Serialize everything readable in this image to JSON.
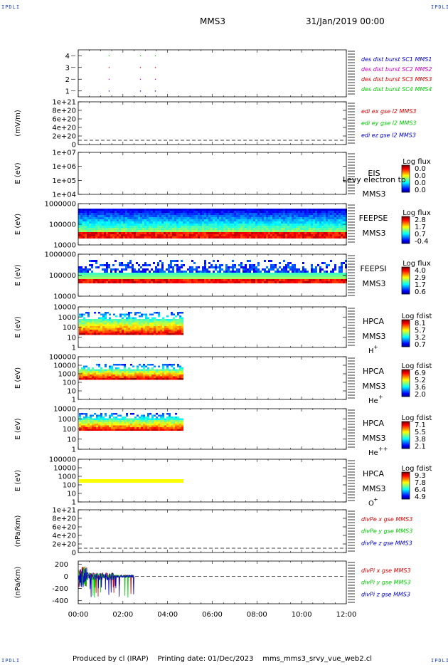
{
  "corners": {
    "tl": "IPDLI",
    "tr": "IPDLI",
    "bl": "IPDLI",
    "br": "IPDLI"
  },
  "header": {
    "spacecraft": "MMS3",
    "datetime": "31/Jan/2019 00:00"
  },
  "footer": {
    "producer": "Produced by cl (IRAP)",
    "printing_date": "Printing date: 01/Dec/2023",
    "file": "mms_mms3_srvy_vue_web2.cl"
  },
  "colors": {
    "sc1": "#0000cc",
    "sc2": "#cc00cc",
    "sc3": "#dd0000",
    "sc4": "#00cc00",
    "axis": "#000000"
  },
  "chart_data": [
    {
      "id": "burst",
      "type": "scatter",
      "ylabel": "",
      "yticks": [
        "4",
        "3",
        "2",
        "1"
      ],
      "ylim": [
        0.5,
        4.5
      ],
      "series": [
        {
          "name": "des dist burst SC1 MMS1",
          "color": "#0000cc",
          "y": 1,
          "x": [
            1.38,
            2.78,
            3.45
          ]
        },
        {
          "name": "des dist burst SC2 MMS2",
          "color": "#cc00cc",
          "y": 2,
          "x": [
            1.38,
            2.78,
            3.45
          ]
        },
        {
          "name": "des dist burst SC3 MMS3",
          "color": "#dd0000",
          "y": 3,
          "x": [
            1.38,
            2.78,
            3.45
          ]
        },
        {
          "name": "des dist burst SC4 MMS4",
          "color": "#00cc00",
          "y": 4,
          "x": [
            1.38,
            2.78,
            3.45
          ]
        }
      ]
    },
    {
      "id": "edi",
      "type": "line",
      "ylabel": "(mV/m)",
      "yticks": [
        "1e+21",
        "8e+20",
        "6e+20",
        "4e+20",
        "2e+20",
        "0"
      ],
      "series": [
        {
          "name": "edi ex gse l2 MMS3",
          "color": "#dd0000"
        },
        {
          "name": "edi ey gse l2 MMS3",
          "color": "#00cc00"
        },
        {
          "name": "edi ez gse l2 MMS3",
          "color": "#0000cc"
        }
      ]
    },
    {
      "id": "eis",
      "type": "heatmap",
      "ylabel": "E (eV)",
      "yticks": [
        "1e+07",
        "1e+06",
        "1e+05",
        "1e+04"
      ],
      "instrument": "EIS",
      "spacecraft": "MMS3",
      "overlay": "Levy electron to",
      "cbar_title": "Log flux",
      "cbar_ticks": [
        "0.0",
        "0.0",
        "0.0",
        "0.0"
      ]
    },
    {
      "id": "feepse",
      "type": "heatmap",
      "ylabel": "E (eV)",
      "yticks": [
        "1000000",
        "100000",
        "10000"
      ],
      "instrument": "FEEPSE",
      "spacecraft": "MMS3",
      "cbar_title": "Log flux",
      "cbar_ticks": [
        "2.8",
        "1.7",
        "0.7",
        "-0.4"
      ]
    },
    {
      "id": "feepsi",
      "type": "heatmap",
      "ylabel": "E (eV)",
      "yticks": [
        "1000000",
        "100000",
        "10000"
      ],
      "instrument": "FEEPSI",
      "spacecraft": "MMS3",
      "cbar_title": "Log flux",
      "cbar_ticks": [
        "4.0",
        "2.9",
        "1.7",
        "0.6"
      ]
    },
    {
      "id": "hpca_h",
      "type": "heatmap",
      "ylabel": "E (eV)",
      "yticks": [
        "10000",
        "1000",
        "100",
        "10",
        "1"
      ],
      "instrument": "HPCA",
      "spacecraft": "MMS3",
      "species": "H",
      "charge": "+",
      "cbar_title": "Log fdist",
      "cbar_ticks": [
        "8.1",
        "5.7",
        "3.2",
        "0.7"
      ],
      "x_end": 4.7
    },
    {
      "id": "hpca_he",
      "type": "heatmap",
      "ylabel": "E (eV)",
      "yticks": [
        "100000",
        "10000",
        "1000",
        "100",
        "10",
        "1"
      ],
      "instrument": "HPCA",
      "spacecraft": "MMS3",
      "species": "He",
      "charge": "+",
      "cbar_title": "Log fdist",
      "cbar_ticks": [
        "6.9",
        "5.2",
        "3.6",
        "2.0"
      ],
      "x_end": 4.7
    },
    {
      "id": "hpca_hepp",
      "type": "heatmap",
      "ylabel": "E (eV)",
      "yticks": [
        "10000",
        "1000",
        "100",
        "10",
        "1"
      ],
      "instrument": "HPCA",
      "spacecraft": "MMS3",
      "species": "He",
      "charge": "++",
      "cbar_title": "Log fdist",
      "cbar_ticks": [
        "7.1",
        "5.5",
        "3.8",
        "2.1"
      ],
      "x_end": 4.7
    },
    {
      "id": "hpca_o",
      "type": "heatmap",
      "ylabel": "E (eV)",
      "yticks": [
        "100000",
        "10000",
        "1000",
        "100",
        "10",
        "1"
      ],
      "instrument": "HPCA",
      "spacecraft": "MMS3",
      "species": "O",
      "charge": "+",
      "cbar_title": "Log fdist",
      "cbar_ticks": [
        "9.3",
        "7.8",
        "6.4",
        "4.9"
      ],
      "x_end": 4.7
    },
    {
      "id": "divpe",
      "type": "line",
      "ylabel": "(nPa/km)",
      "yticks": [
        "1e+21",
        "8e+20",
        "6e+20",
        "4e+20",
        "2e+20",
        "0"
      ],
      "series": [
        {
          "name": "divPe x gse MMS3",
          "color": "#dd0000"
        },
        {
          "name": "divPe y gse MMS3",
          "color": "#00cc00"
        },
        {
          "name": "divPe z gse MMS3",
          "color": "#0000cc"
        }
      ]
    },
    {
      "id": "divpi",
      "type": "line",
      "ylabel": "(nPa/km)",
      "yticks": [
        "200",
        "0",
        "-200",
        "-400"
      ],
      "ylim": [
        -450,
        250
      ],
      "series": [
        {
          "name": "divPi x gse MMS3",
          "color": "#dd0000"
        },
        {
          "name": "divPi y gse MMS3",
          "color": "#00cc00"
        },
        {
          "name": "divPi z gse MMS3",
          "color": "#0000cc"
        }
      ]
    }
  ],
  "xaxis": {
    "ticks": [
      "00:00",
      "02:00",
      "04:00",
      "06:00",
      "08:00",
      "10:00",
      "12:00"
    ],
    "xlim": [
      0,
      12
    ]
  }
}
